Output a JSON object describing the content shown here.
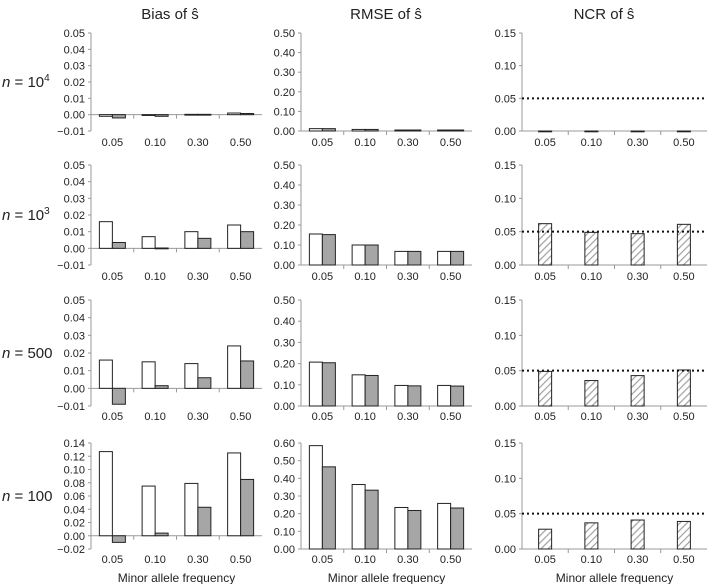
{
  "column_titles": [
    "Bias of ŝ",
    "RMSE of ŝ",
    "NCR of ŝ"
  ],
  "row_labels": [
    {
      "prefix": "n",
      "text": " = 10",
      "sup": "4"
    },
    {
      "prefix": "n",
      "text": " = 10",
      "sup": "3"
    },
    {
      "prefix": "n",
      "text": " = 500",
      "sup": ""
    },
    {
      "prefix": "n",
      "text": " = 100",
      "sup": ""
    }
  ],
  "xlabel": "Minor allele frequency",
  "colors": {
    "open": "#ffffff",
    "filled": "#a6a6a6",
    "hatch": "#a0a0a0",
    "axis": "#999999",
    "bar_edge": "#222222"
  },
  "chart_data": [
    {
      "type": "bar",
      "row": 0,
      "col": 0,
      "ylim": [
        -0.01,
        0.05
      ],
      "yticks": [
        "−0.01",
        "0.00",
        "0.01",
        "0.02",
        "0.03",
        "0.04",
        "0.05"
      ],
      "ytick_values": [
        -0.01,
        0,
        0.01,
        0.02,
        0.03,
        0.04,
        0.05
      ],
      "categories": [
        "0.05",
        "0.10",
        "0.30",
        "0.50"
      ],
      "series": [
        {
          "name": "open",
          "values": [
            -0.001,
            0.0,
            0.0002,
            0.001
          ]
        },
        {
          "name": "filled",
          "values": [
            -0.002,
            -0.001,
            0.0002,
            0.0007
          ]
        }
      ]
    },
    {
      "type": "bar",
      "row": 0,
      "col": 1,
      "ylim": [
        0,
        0.5
      ],
      "yticks": [
        "0.00",
        "0.10",
        "0.20",
        "0.30",
        "0.40",
        "0.50"
      ],
      "ytick_values": [
        0,
        0.1,
        0.2,
        0.3,
        0.4,
        0.5
      ],
      "categories": [
        "0.05",
        "0.10",
        "0.30",
        "0.50"
      ],
      "series": [
        {
          "name": "open",
          "values": [
            0.012,
            0.008,
            0.005,
            0.005
          ]
        },
        {
          "name": "filled",
          "values": [
            0.012,
            0.008,
            0.005,
            0.005
          ]
        }
      ]
    },
    {
      "type": "bar",
      "row": 0,
      "col": 2,
      "ylim": [
        0,
        0.15
      ],
      "yticks": [
        "0.00",
        "0.05",
        "0.10",
        "0.15"
      ],
      "ytick_values": [
        0,
        0.05,
        0.1,
        0.15
      ],
      "categories": [
        "0.05",
        "0.10",
        "0.30",
        "0.50"
      ],
      "reference_line": 0.05,
      "series": [
        {
          "name": "hatched",
          "values": [
            0,
            0,
            0,
            0
          ]
        }
      ]
    },
    {
      "type": "bar",
      "row": 1,
      "col": 0,
      "ylim": [
        -0.01,
        0.05
      ],
      "yticks": [
        "−0.01",
        "0.00",
        "0.01",
        "0.02",
        "0.03",
        "0.04",
        "0.05"
      ],
      "ytick_values": [
        -0.01,
        0,
        0.01,
        0.02,
        0.03,
        0.04,
        0.05
      ],
      "categories": [
        "0.05",
        "0.10",
        "0.30",
        "0.50"
      ],
      "series": [
        {
          "name": "open",
          "values": [
            0.016,
            0.007,
            0.01,
            0.014
          ]
        },
        {
          "name": "filled",
          "values": [
            0.0035,
            0.0002,
            0.006,
            0.01
          ]
        }
      ]
    },
    {
      "type": "bar",
      "row": 1,
      "col": 1,
      "ylim": [
        0,
        0.5
      ],
      "yticks": [
        "0.00",
        "0.10",
        "0.20",
        "0.30",
        "0.40",
        "0.50"
      ],
      "ytick_values": [
        0,
        0.1,
        0.2,
        0.3,
        0.4,
        0.5
      ],
      "categories": [
        "0.05",
        "0.10",
        "0.30",
        "0.50"
      ],
      "series": [
        {
          "name": "open",
          "values": [
            0.155,
            0.1,
            0.068,
            0.068
          ]
        },
        {
          "name": "filled",
          "values": [
            0.152,
            0.1,
            0.068,
            0.068
          ]
        }
      ]
    },
    {
      "type": "bar",
      "row": 1,
      "col": 2,
      "ylim": [
        0,
        0.15
      ],
      "yticks": [
        "0.00",
        "0.05",
        "0.10",
        "0.15"
      ],
      "ytick_values": [
        0,
        0.05,
        0.1,
        0.15
      ],
      "categories": [
        "0.05",
        "0.10",
        "0.30",
        "0.50"
      ],
      "reference_line": 0.05,
      "series": [
        {
          "name": "hatched",
          "values": [
            0.062,
            0.049,
            0.047,
            0.061
          ]
        }
      ]
    },
    {
      "type": "bar",
      "row": 2,
      "col": 0,
      "ylim": [
        -0.01,
        0.05
      ],
      "yticks": [
        "−0.01",
        "0.00",
        "0.01",
        "0.02",
        "0.03",
        "0.04",
        "0.05"
      ],
      "ytick_values": [
        -0.01,
        0,
        0.01,
        0.02,
        0.03,
        0.04,
        0.05
      ],
      "categories": [
        "0.05",
        "0.10",
        "0.30",
        "0.50"
      ],
      "series": [
        {
          "name": "open",
          "values": [
            0.016,
            0.015,
            0.014,
            0.024
          ]
        },
        {
          "name": "filled",
          "values": [
            -0.009,
            0.0015,
            0.006,
            0.0155
          ]
        }
      ]
    },
    {
      "type": "bar",
      "row": 2,
      "col": 1,
      "ylim": [
        0,
        0.5
      ],
      "yticks": [
        "0.00",
        "0.10",
        "0.20",
        "0.30",
        "0.40",
        "0.50"
      ],
      "ytick_values": [
        0,
        0.1,
        0.2,
        0.3,
        0.4,
        0.5
      ],
      "categories": [
        "0.05",
        "0.10",
        "0.30",
        "0.50"
      ],
      "series": [
        {
          "name": "open",
          "values": [
            0.207,
            0.147,
            0.097,
            0.097
          ]
        },
        {
          "name": "filled",
          "values": [
            0.204,
            0.144,
            0.095,
            0.094
          ]
        }
      ]
    },
    {
      "type": "bar",
      "row": 2,
      "col": 2,
      "ylim": [
        0,
        0.15
      ],
      "yticks": [
        "0.00",
        "0.05",
        "0.10",
        "0.15"
      ],
      "ytick_values": [
        0,
        0.05,
        0.1,
        0.15
      ],
      "categories": [
        "0.05",
        "0.10",
        "0.30",
        "0.50"
      ],
      "reference_line": 0.05,
      "series": [
        {
          "name": "hatched",
          "values": [
            0.049,
            0.036,
            0.043,
            0.051
          ]
        }
      ]
    },
    {
      "type": "bar",
      "row": 3,
      "col": 0,
      "ylim": [
        -0.02,
        0.14
      ],
      "yticks": [
        "−0.02",
        "0.00",
        "0.02",
        "0.04",
        "0.06",
        "0.08",
        "0.10",
        "0.12",
        "0.14"
      ],
      "ytick_values": [
        -0.02,
        0,
        0.02,
        0.04,
        0.06,
        0.08,
        0.1,
        0.12,
        0.14
      ],
      "categories": [
        "0.05",
        "0.10",
        "0.30",
        "0.50"
      ],
      "series": [
        {
          "name": "open",
          "values": [
            0.127,
            0.075,
            0.079,
            0.125
          ]
        },
        {
          "name": "filled",
          "values": [
            -0.01,
            0.004,
            0.043,
            0.085
          ]
        }
      ]
    },
    {
      "type": "bar",
      "row": 3,
      "col": 1,
      "ylim": [
        0,
        0.6
      ],
      "yticks": [
        "0.00",
        "0.10",
        "0.20",
        "0.30",
        "0.40",
        "0.50",
        "0.60"
      ],
      "ytick_values": [
        0,
        0.1,
        0.2,
        0.3,
        0.4,
        0.5,
        0.6
      ],
      "categories": [
        "0.05",
        "0.10",
        "0.30",
        "0.50"
      ],
      "series": [
        {
          "name": "open",
          "values": [
            0.585,
            0.365,
            0.235,
            0.258
          ]
        },
        {
          "name": "filled",
          "values": [
            0.465,
            0.333,
            0.218,
            0.232
          ]
        }
      ]
    },
    {
      "type": "bar",
      "row": 3,
      "col": 2,
      "ylim": [
        0,
        0.15
      ],
      "yticks": [
        "0.00",
        "0.05",
        "0.10",
        "0.15"
      ],
      "ytick_values": [
        0,
        0.05,
        0.1,
        0.15
      ],
      "categories": [
        "0.05",
        "0.10",
        "0.30",
        "0.50"
      ],
      "reference_line": 0.05,
      "series": [
        {
          "name": "hatched",
          "values": [
            0.028,
            0.037,
            0.041,
            0.039
          ]
        }
      ]
    }
  ]
}
